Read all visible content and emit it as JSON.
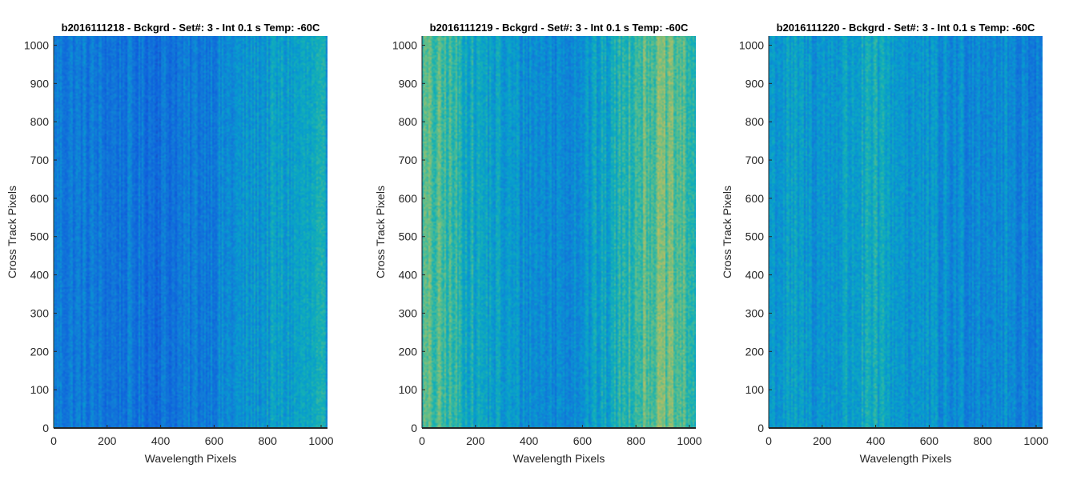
{
  "chart_data": [
    {
      "type": "heatmap",
      "title": "b2016111218 - Bckgrd - Set#: 3 - Int 0.1 s Temp: -60C",
      "xlabel": "Wavelength Pixels",
      "ylabel": "Cross Track Pixels",
      "xlim": [
        0,
        1024
      ],
      "ylim": [
        0,
        1024
      ],
      "xticks": [
        "0",
        "200",
        "400",
        "600",
        "800",
        "1000"
      ],
      "yticks": [
        "0",
        "100",
        "200",
        "300",
        "400",
        "500",
        "600",
        "700",
        "800",
        "900",
        "1000"
      ],
      "grid": false,
      "colormap": "parula",
      "dominant_color": "#1592d6",
      "x_column_profile": [
        {
          "x": 0,
          "level": 0.3
        },
        {
          "x": 100,
          "level": 0.28
        },
        {
          "x": 200,
          "level": 0.26
        },
        {
          "x": 300,
          "level": 0.26
        },
        {
          "x": 400,
          "level": 0.25
        },
        {
          "x": 500,
          "level": 0.27
        },
        {
          "x": 600,
          "level": 0.31
        },
        {
          "x": 700,
          "level": 0.36
        },
        {
          "x": 800,
          "level": 0.4
        },
        {
          "x": 900,
          "level": 0.42
        },
        {
          "x": 1000,
          "level": 0.44
        },
        {
          "x": 1024,
          "level": 0.4
        }
      ]
    },
    {
      "type": "heatmap",
      "title": "b2016111219 - Bckgrd - Set#: 3 - Int 0.1 s Temp: -60C",
      "xlabel": "Wavelength Pixels",
      "ylabel": "Cross Track Pixels",
      "xlim": [
        0,
        1024
      ],
      "ylim": [
        0,
        1024
      ],
      "xticks": [
        "0",
        "200",
        "400",
        "600",
        "800",
        "1000"
      ],
      "yticks": [
        "0",
        "100",
        "200",
        "300",
        "400",
        "500",
        "600",
        "700",
        "800",
        "900",
        "1000"
      ],
      "grid": false,
      "colormap": "parula",
      "dominant_color": "#3fb3a6",
      "x_column_profile": [
        {
          "x": 0,
          "level": 0.58
        },
        {
          "x": 100,
          "level": 0.55
        },
        {
          "x": 200,
          "level": 0.45
        },
        {
          "x": 300,
          "level": 0.4
        },
        {
          "x": 400,
          "level": 0.36
        },
        {
          "x": 500,
          "level": 0.34
        },
        {
          "x": 600,
          "level": 0.38
        },
        {
          "x": 700,
          "level": 0.44
        },
        {
          "x": 800,
          "level": 0.58
        },
        {
          "x": 900,
          "level": 0.62
        },
        {
          "x": 1000,
          "level": 0.55
        },
        {
          "x": 1024,
          "level": 0.5
        }
      ]
    },
    {
      "type": "heatmap",
      "title": "b2016111220 - Bckgrd - Set#: 3 - Int 0.1 s Temp: -60C",
      "xlabel": "Wavelength Pixels",
      "ylabel": "Cross Track Pixels",
      "xlim": [
        0,
        1024
      ],
      "ylim": [
        0,
        1024
      ],
      "xticks": [
        "0",
        "200",
        "400",
        "600",
        "800",
        "1000"
      ],
      "yticks": [
        "0",
        "100",
        "200",
        "300",
        "400",
        "500",
        "600",
        "700",
        "800",
        "900",
        "1000"
      ],
      "grid": false,
      "colormap": "parula",
      "dominant_color": "#19a0cc",
      "x_column_profile": [
        {
          "x": 0,
          "level": 0.4
        },
        {
          "x": 100,
          "level": 0.4
        },
        {
          "x": 200,
          "level": 0.38
        },
        {
          "x": 300,
          "level": 0.42
        },
        {
          "x": 400,
          "level": 0.45
        },
        {
          "x": 500,
          "level": 0.4
        },
        {
          "x": 600,
          "level": 0.36
        },
        {
          "x": 700,
          "level": 0.34
        },
        {
          "x": 800,
          "level": 0.36
        },
        {
          "x": 900,
          "level": 0.34
        },
        {
          "x": 1000,
          "level": 0.3
        },
        {
          "x": 1024,
          "level": 0.28
        }
      ]
    }
  ]
}
